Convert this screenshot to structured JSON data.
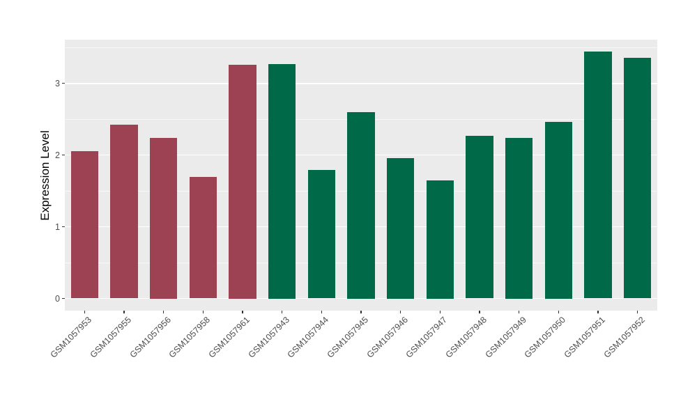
{
  "figure": {
    "background": "#FFFFFF",
    "panel_background": "#EBEBEB",
    "gridline_color": "#FFFFFF",
    "tick_color": "#333333",
    "axis_text_color": "#4D4D4D",
    "axis_title_color": "#000000"
  },
  "chart_data": {
    "type": "bar",
    "title": "",
    "xlabel": "",
    "ylabel": "Expression Level",
    "ylim": [
      -0.17,
      3.61
    ],
    "y_ticks": [
      0,
      1,
      2,
      3
    ],
    "y_minor_ticks": [
      0.5,
      1.5,
      2.5,
      3.5
    ],
    "grid": true,
    "legend": "none",
    "x_tick_rotation": 45,
    "bar_width_fraction": 0.7,
    "bars": [
      {
        "label": "GSM1057953",
        "value": 2.06,
        "color": "#9D4253"
      },
      {
        "label": "GSM1057955",
        "value": 2.42,
        "color": "#9D4253"
      },
      {
        "label": "GSM1057956",
        "value": 2.24,
        "color": "#9D4253"
      },
      {
        "label": "GSM1057958",
        "value": 1.7,
        "color": "#9D4253"
      },
      {
        "label": "GSM1057961",
        "value": 3.26,
        "color": "#9D4253"
      },
      {
        "label": "GSM1057943",
        "value": 3.27,
        "color": "#006948"
      },
      {
        "label": "GSM1057944",
        "value": 1.79,
        "color": "#006948"
      },
      {
        "label": "GSM1057945",
        "value": 2.6,
        "color": "#006948"
      },
      {
        "label": "GSM1057946",
        "value": 1.96,
        "color": "#006948"
      },
      {
        "label": "GSM1057947",
        "value": 1.65,
        "color": "#006948"
      },
      {
        "label": "GSM1057948",
        "value": 2.27,
        "color": "#006948"
      },
      {
        "label": "GSM1057949",
        "value": 2.24,
        "color": "#006948"
      },
      {
        "label": "GSM1057950",
        "value": 2.46,
        "color": "#006948"
      },
      {
        "label": "GSM1057951",
        "value": 3.44,
        "color": "#006948"
      },
      {
        "label": "GSM1057952",
        "value": 3.36,
        "color": "#006948"
      }
    ]
  }
}
